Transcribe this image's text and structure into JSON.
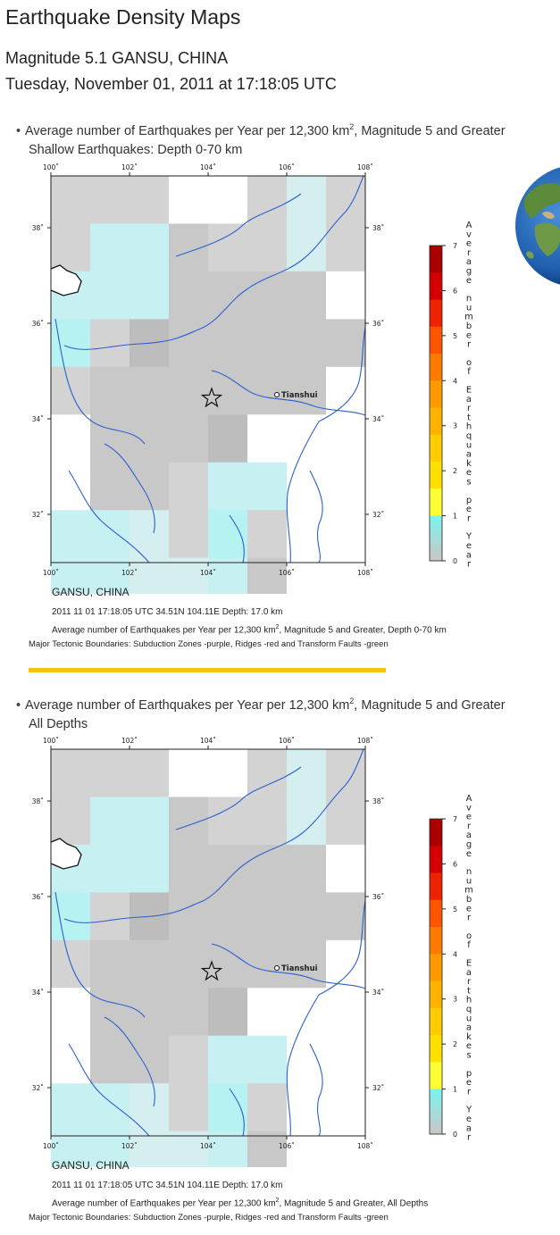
{
  "page": {
    "title": "Earthquake Density Maps",
    "event_title": "Magnitude 5.1 GANSU, CHINA",
    "event_date": "Tuesday, November 01, 2011 at 17:18:05 UTC"
  },
  "colors": {
    "divider": "#f2c418",
    "river": "#2b5fd0",
    "scale": [
      "#c8c8c8",
      "#c2f2f2",
      "#7ef2ec",
      "#ffff33",
      "#ffcc00",
      "#ff9900",
      "#ff5500",
      "#ee1100",
      "#aa0000"
    ]
  },
  "sections": [
    {
      "heading_main": "Average number of Earthquakes per Year per 12,300 km",
      "heading_sup": "2",
      "heading_rest": ", Magnitude 5 and Greater",
      "subheading": "Shallow Earthquakes: Depth 0-70 km",
      "caption_region": "GANSU, CHINA",
      "caption_event": "2011 11 01 17:18:05 UTC 34.51N 104.11E Depth: 17.0 km",
      "caption_avg_main": "Average number of Earthquakes per Year per 12,300 km",
      "caption_avg_sup": "2",
      "caption_avg_rest": ", Magnitude 5 and Greater, Depth 0-70 km",
      "caption_tectonic": "Major Tectonic Boundaries: Subduction Zones -purple, Ridges -red and Transform Faults -green"
    },
    {
      "heading_main": "Average number of Earthquakes per Year per 12,300 km",
      "heading_sup": "2",
      "heading_rest": ", Magnitude 5 and Greater",
      "subheading": "All Depths",
      "caption_region": "GANSU, CHINA",
      "caption_event": "2011 11 01 17:18:05 UTC 34.51N 104.11E Depth: 17.0 km",
      "caption_avg_main": "Average number of Earthquakes per Year per 12,300 km",
      "caption_avg_sup": "2",
      "caption_avg_rest": ", Magnitude 5 and Greater, All Depths",
      "caption_tectonic": "Major Tectonic Boundaries: Subduction Zones -purple, Ridges -red and Transform Faults -green"
    }
  ],
  "map": {
    "lon_ticks": [
      "100˚",
      "102˚",
      "104˚",
      "106˚",
      "108˚"
    ],
    "lat_ticks": [
      "38˚",
      "36˚",
      "34˚",
      "32˚"
    ],
    "city": "Tianshui",
    "epicenter": {
      "lat": 34.51,
      "lon": 104.11
    },
    "legend_ticks": [
      "0",
      "1",
      "2",
      "3",
      "4",
      "5",
      "6",
      "7"
    ],
    "legend_title": [
      "A",
      "v",
      "e",
      "r",
      "a",
      "g",
      "e",
      " ",
      "n",
      "u",
      "m",
      "b",
      "e",
      "r",
      " ",
      "o",
      "f",
      " ",
      "E",
      "a",
      "r",
      "t",
      "h",
      "q",
      "u",
      "a",
      "k",
      "e",
      "s",
      " ",
      "p",
      "e",
      "r",
      " ",
      "Y",
      "e",
      "a",
      "r"
    ],
    "grid_shades": [
      [
        "g3",
        "g3",
        "g3",
        "w",
        "w",
        "g3",
        "c3",
        "g3"
      ],
      [
        "g3",
        "c2",
        "c2",
        "g2",
        "g3",
        "g3",
        "c3",
        "g3"
      ],
      [
        "c2",
        "c2",
        "c2",
        "g2",
        "g2",
        "g2",
        "g2",
        "w"
      ],
      [
        "c1",
        "g3",
        "g1",
        "g2",
        "g2",
        "g2",
        "g2",
        "g2"
      ],
      [
        "g3",
        "g2",
        "g2",
        "g2",
        "g2",
        "g2",
        "g2",
        "w"
      ],
      [
        "w",
        "g2",
        "g2",
        "g2",
        "g1",
        "w",
        "w",
        "w"
      ],
      [
        "w",
        "g2",
        "g2",
        "g3",
        "c2",
        "c2",
        "w",
        "w"
      ],
      [
        "c2",
        "c2",
        "c3",
        "g3",
        "c1",
        "g3",
        "w",
        "w"
      ],
      [
        "c2",
        "c2",
        "c3",
        "c3",
        "c2",
        "g2",
        "w",
        "w"
      ]
    ]
  }
}
